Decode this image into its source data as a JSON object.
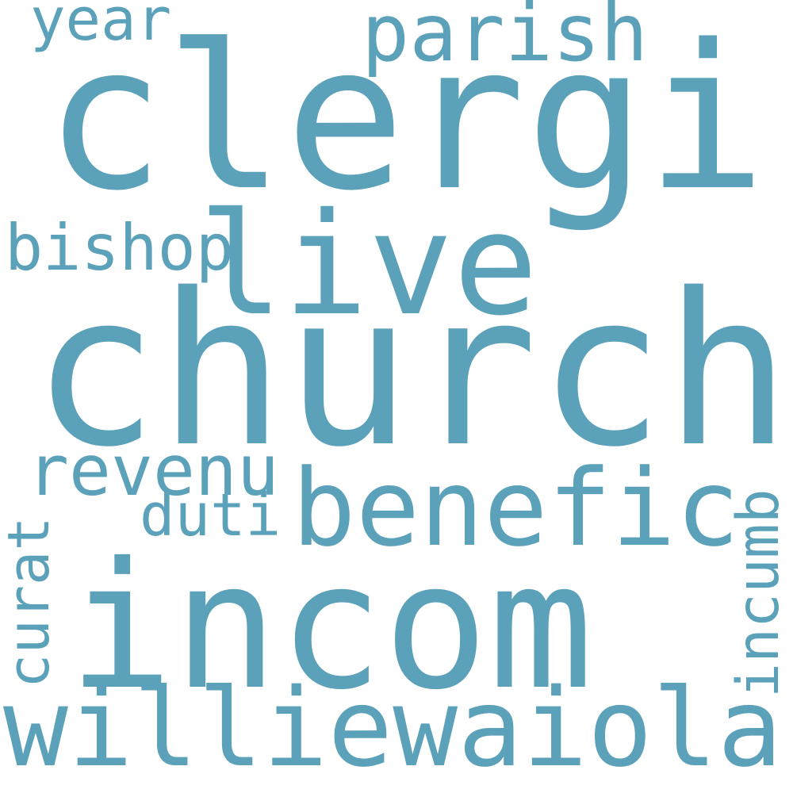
{
  "color": "#5ca1ba",
  "words": [
    {
      "id": "clergi",
      "text": "clergi"
    },
    {
      "id": "church",
      "text": "church"
    },
    {
      "id": "incom",
      "text": "incom"
    },
    {
      "id": "williewaiola",
      "text": "williewaiola"
    },
    {
      "id": "live",
      "text": "live"
    },
    {
      "id": "benefic",
      "text": "benefic"
    },
    {
      "id": "parish",
      "text": "parish"
    },
    {
      "id": "revenu",
      "text": "revenu"
    },
    {
      "id": "bishop",
      "text": "bishop"
    },
    {
      "id": "year",
      "text": "year"
    },
    {
      "id": "duti",
      "text": "duti"
    },
    {
      "id": "curat",
      "text": "curat"
    },
    {
      "id": "incumb",
      "text": "incumb"
    }
  ]
}
